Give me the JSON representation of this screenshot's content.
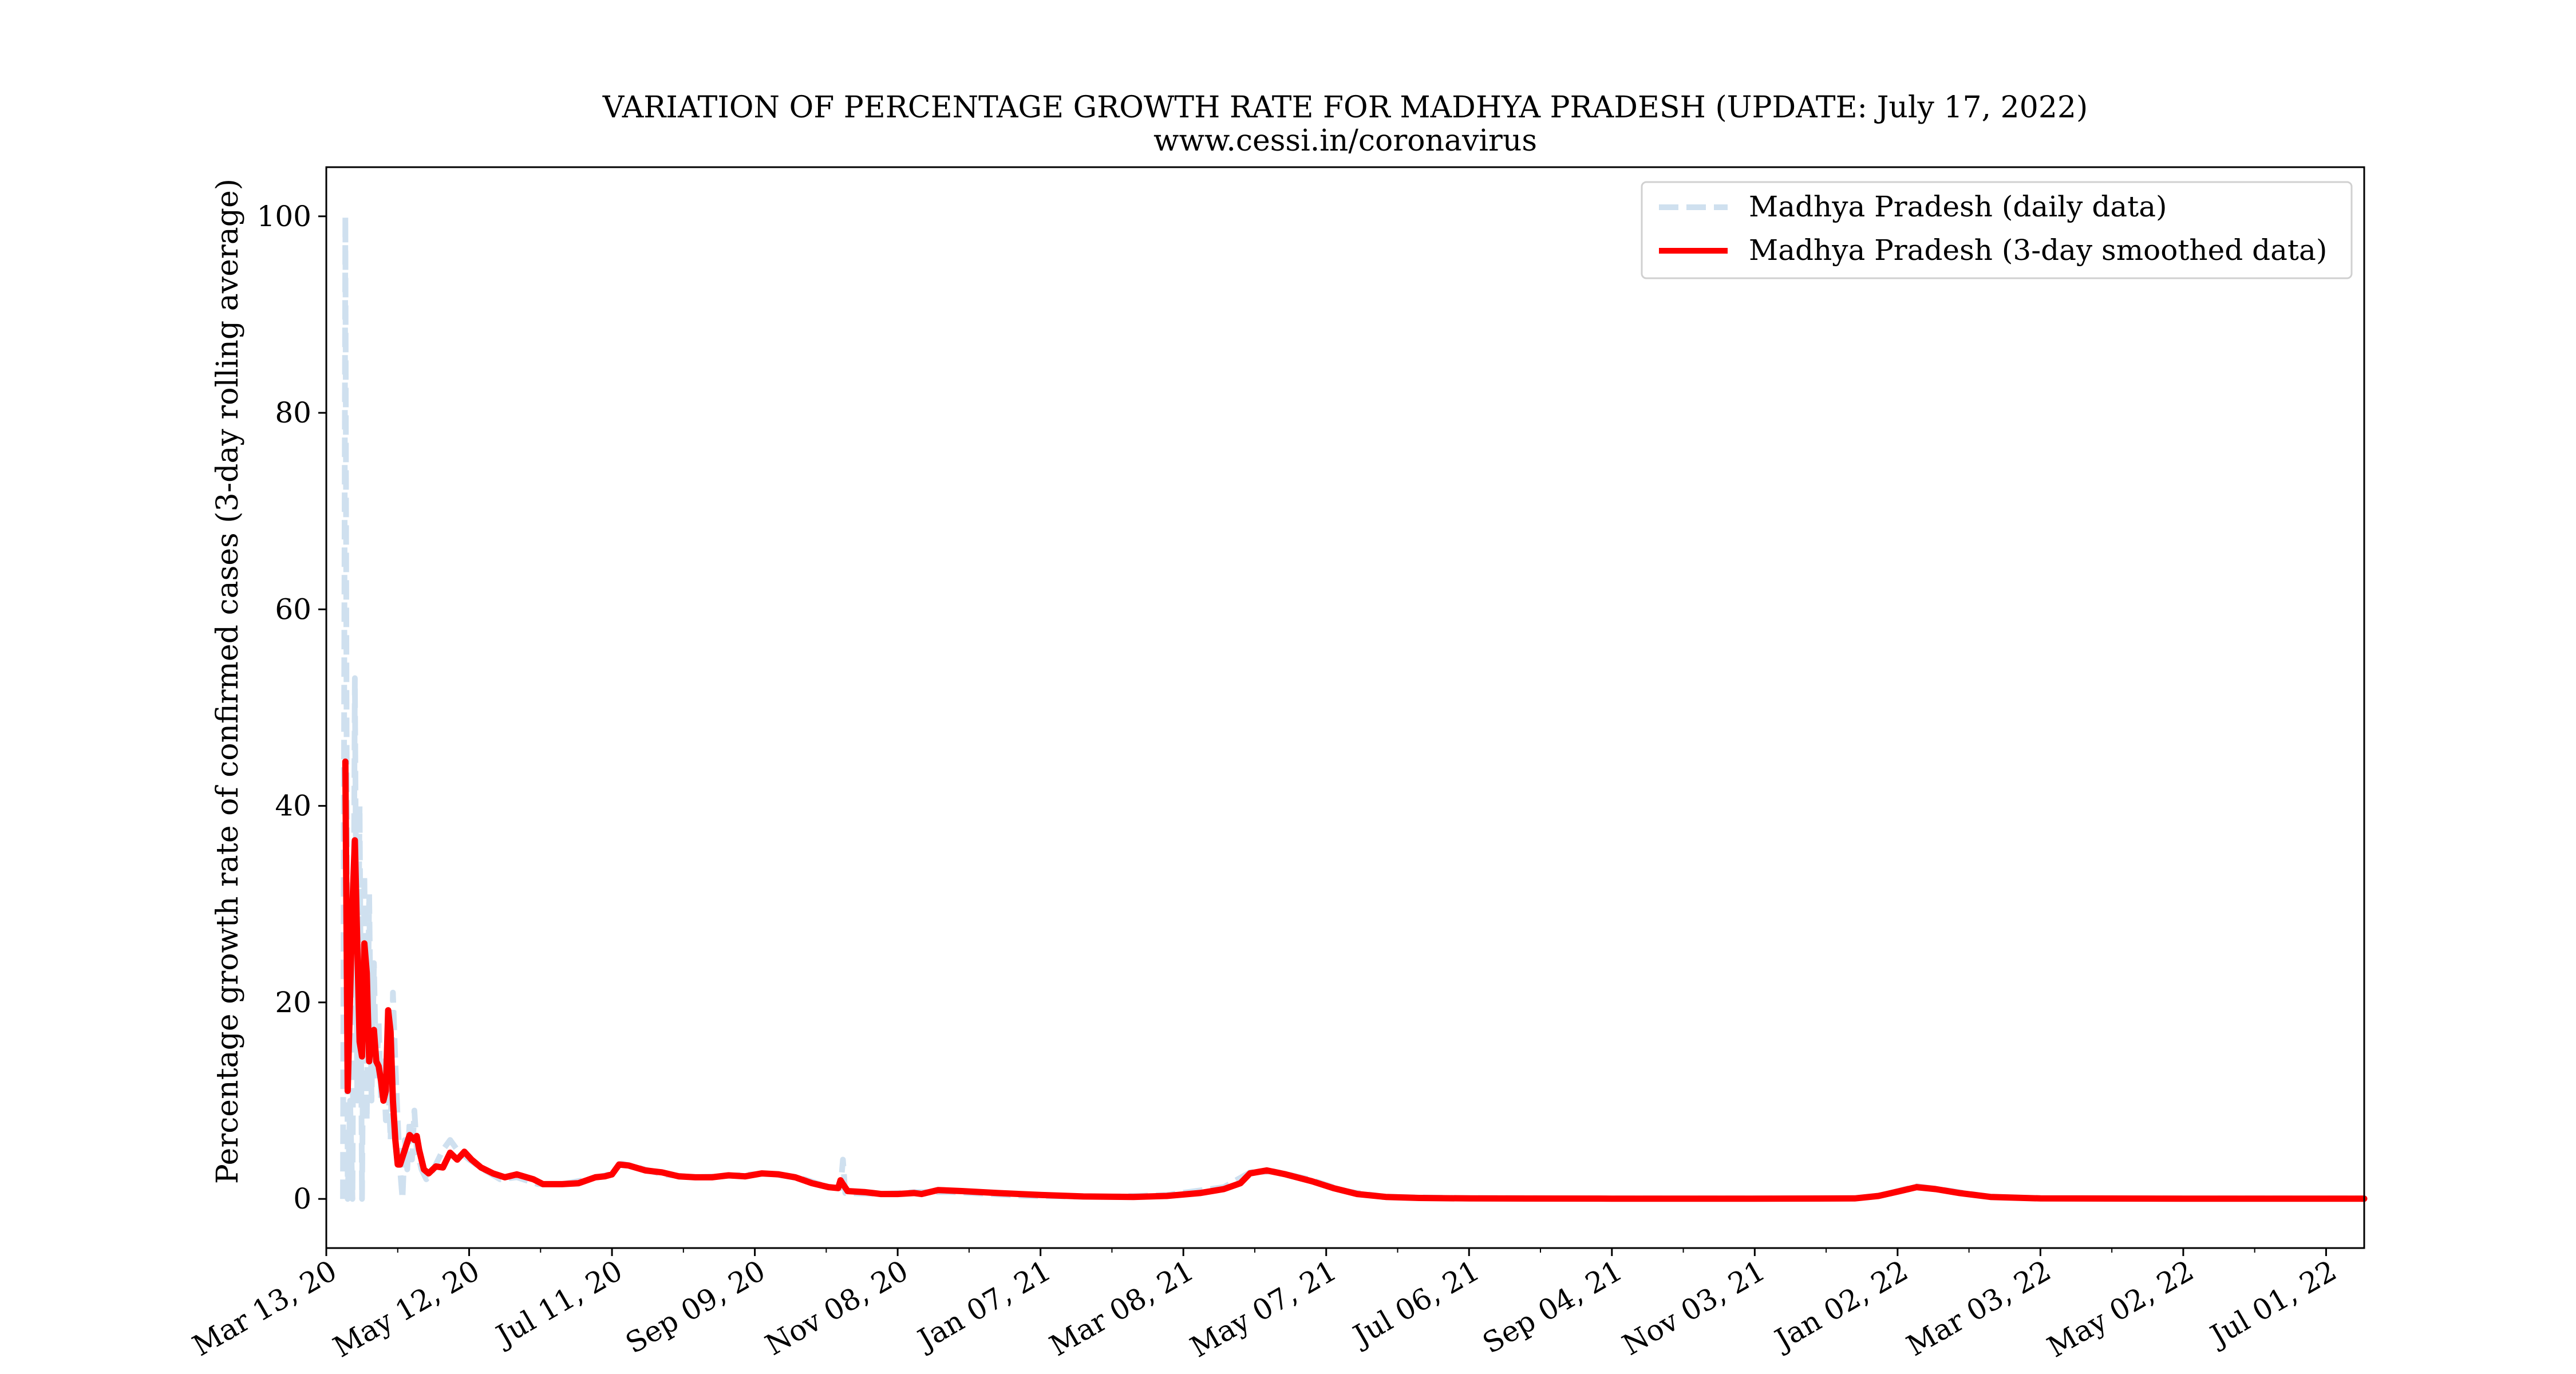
{
  "chart_data": {
    "type": "line",
    "title": "VARIATION OF PERCENTAGE GROWTH RATE FOR MADHYA PRADESH (UPDATE: July 17, 2022)",
    "subtitle": "www.cessi.in/coronavirus",
    "xlabel": "",
    "ylabel": "Percentage growth rate of confirmed cases (3-day rolling average)",
    "x_start_date": "2020-03-13",
    "x_end_date": "2022-07-17",
    "xlim": [
      "2020-03-13",
      "2022-07-17"
    ],
    "ylim": [
      -5,
      105
    ],
    "x_ticks": [
      "2020-03-13",
      "2020-05-12",
      "2020-07-11",
      "2020-09-09",
      "2020-11-08",
      "2021-01-07",
      "2021-03-08",
      "2021-05-07",
      "2021-07-06",
      "2021-09-04",
      "2021-11-03",
      "2022-01-02",
      "2022-03-03",
      "2022-05-02",
      "2022-07-01"
    ],
    "x_tick_labels": [
      "Mar 13, 20",
      "May 12, 20",
      "Jul 11, 20",
      "Sep 09, 20",
      "Nov 08, 20",
      "Jan 07, 21",
      "Mar 08, 21",
      "May 07, 21",
      "Jul 06, 21",
      "Sep 04, 21",
      "Nov 03, 21",
      "Jan 02, 22",
      "Mar 03, 22",
      "May 02, 22",
      "Jul 01, 22"
    ],
    "y_ticks": [
      0,
      20,
      40,
      60,
      80,
      100
    ],
    "y_tick_labels": [
      "0",
      "20",
      "40",
      "60",
      "80",
      "100"
    ],
    "grid": false,
    "legend_position": "top-right",
    "series": [
      {
        "name": "Madhya Pradesh (daily data)",
        "color": "#cfe0ef",
        "style": "dashed",
        "points": [
          [
            "2020-03-20",
            0
          ],
          [
            "2020-03-21",
            100
          ],
          [
            "2020-03-22",
            0
          ],
          [
            "2020-03-23",
            10
          ],
          [
            "2020-03-24",
            0
          ],
          [
            "2020-03-25",
            53
          ],
          [
            "2020-03-26",
            10
          ],
          [
            "2020-03-27",
            40
          ],
          [
            "2020-03-28",
            0
          ],
          [
            "2020-03-29",
            33
          ],
          [
            "2020-03-30",
            8
          ],
          [
            "2020-03-31",
            31
          ],
          [
            "2020-04-01",
            10
          ],
          [
            "2020-04-02",
            24
          ],
          [
            "2020-04-03",
            12
          ],
          [
            "2020-04-04",
            18
          ],
          [
            "2020-04-05",
            10
          ],
          [
            "2020-04-06",
            14
          ],
          [
            "2020-04-07",
            8
          ],
          [
            "2020-04-08",
            12
          ],
          [
            "2020-04-09",
            6
          ],
          [
            "2020-04-10",
            21
          ],
          [
            "2020-04-11",
            14
          ],
          [
            "2020-04-12",
            8
          ],
          [
            "2020-04-13",
            3
          ],
          [
            "2020-04-14",
            0
          ],
          [
            "2020-04-15",
            6
          ],
          [
            "2020-04-16",
            3
          ],
          [
            "2020-04-17",
            8
          ],
          [
            "2020-04-18",
            4
          ],
          [
            "2020-04-19",
            9
          ],
          [
            "2020-04-20",
            5
          ],
          [
            "2020-04-22",
            3
          ],
          [
            "2020-04-24",
            2
          ],
          [
            "2020-04-27",
            3
          ],
          [
            "2020-05-01",
            5
          ],
          [
            "2020-05-04",
            6
          ],
          [
            "2020-05-07",
            5
          ],
          [
            "2020-05-12",
            4
          ],
          [
            "2020-05-18",
            3
          ],
          [
            "2020-05-25",
            2
          ],
          [
            "2020-06-01",
            2.2
          ],
          [
            "2020-06-10",
            1.5
          ],
          [
            "2020-06-20",
            1.5
          ],
          [
            "2020-07-01",
            2
          ],
          [
            "2020-07-10",
            2.5
          ],
          [
            "2020-07-15",
            3.6
          ],
          [
            "2020-07-22",
            3.2
          ],
          [
            "2020-08-01",
            2.5
          ],
          [
            "2020-08-15",
            2.2
          ],
          [
            "2020-09-01",
            2.4
          ],
          [
            "2020-09-15",
            2.6
          ],
          [
            "2020-09-30",
            2
          ],
          [
            "2020-10-10",
            1.2
          ],
          [
            "2020-10-15",
            1.1
          ],
          [
            "2020-10-16",
            4
          ],
          [
            "2020-10-17",
            0.6
          ],
          [
            "2020-11-01",
            0.5
          ],
          [
            "2020-11-15",
            0.7
          ],
          [
            "2020-12-01",
            0.7
          ],
          [
            "2021-01-01",
            0.3
          ],
          [
            "2021-02-01",
            0.2
          ],
          [
            "2021-03-01",
            0.4
          ],
          [
            "2021-03-25",
            1.2
          ],
          [
            "2021-04-05",
            2.7
          ],
          [
            "2021-04-15",
            2.8
          ],
          [
            "2021-04-30",
            2
          ],
          [
            "2021-05-15",
            0.8
          ],
          [
            "2021-06-01",
            0.2
          ],
          [
            "2021-07-01",
            0.1
          ],
          [
            "2021-09-01",
            0.05
          ],
          [
            "2021-12-15",
            0.05
          ],
          [
            "2021-12-25",
            0.3
          ],
          [
            "2022-01-10",
            1.3
          ],
          [
            "2022-01-25",
            0.8
          ],
          [
            "2022-02-10",
            0.2
          ],
          [
            "2022-03-01",
            0.05
          ],
          [
            "2022-07-17",
            0.05
          ]
        ]
      },
      {
        "name": "Madhya Pradesh (3-day smoothed data)",
        "color": "#ff0000",
        "style": "solid",
        "points": [
          [
            "2020-03-21",
            44.5
          ],
          [
            "2020-03-22",
            11
          ],
          [
            "2020-03-24",
            30
          ],
          [
            "2020-03-25",
            36.5
          ],
          [
            "2020-03-26",
            26
          ],
          [
            "2020-03-27",
            16
          ],
          [
            "2020-03-28",
            14.5
          ],
          [
            "2020-03-29",
            26
          ],
          [
            "2020-03-30",
            23
          ],
          [
            "2020-03-31",
            14
          ],
          [
            "2020-04-01",
            17
          ],
          [
            "2020-04-02",
            17.2
          ],
          [
            "2020-04-03",
            14
          ],
          [
            "2020-04-04",
            13.5
          ],
          [
            "2020-04-05",
            12
          ],
          [
            "2020-04-06",
            10
          ],
          [
            "2020-04-07",
            11
          ],
          [
            "2020-04-08",
            19.2
          ],
          [
            "2020-04-09",
            17
          ],
          [
            "2020-04-10",
            10
          ],
          [
            "2020-04-11",
            6
          ],
          [
            "2020-04-12",
            3.5
          ],
          [
            "2020-04-13",
            3.5
          ],
          [
            "2020-04-15",
            5
          ],
          [
            "2020-04-17",
            6.5
          ],
          [
            "2020-04-19",
            6
          ],
          [
            "2020-04-20",
            6.4
          ],
          [
            "2020-04-21",
            5
          ],
          [
            "2020-04-23",
            3
          ],
          [
            "2020-04-25",
            2.6
          ],
          [
            "2020-04-28",
            3.3
          ],
          [
            "2020-05-01",
            3.2
          ],
          [
            "2020-05-04",
            4.7
          ],
          [
            "2020-05-07",
            4
          ],
          [
            "2020-05-10",
            4.8
          ],
          [
            "2020-05-13",
            4
          ],
          [
            "2020-05-17",
            3.2
          ],
          [
            "2020-05-22",
            2.6
          ],
          [
            "2020-05-27",
            2.2
          ],
          [
            "2020-06-01",
            2.5
          ],
          [
            "2020-06-08",
            2
          ],
          [
            "2020-06-12",
            1.5
          ],
          [
            "2020-06-20",
            1.5
          ],
          [
            "2020-06-27",
            1.6
          ],
          [
            "2020-07-04",
            2.2
          ],
          [
            "2020-07-08",
            2.3
          ],
          [
            "2020-07-11",
            2.5
          ],
          [
            "2020-07-14",
            3.5
          ],
          [
            "2020-07-18",
            3.4
          ],
          [
            "2020-07-25",
            2.9
          ],
          [
            "2020-08-01",
            2.7
          ],
          [
            "2020-08-08",
            2.3
          ],
          [
            "2020-08-15",
            2.2
          ],
          [
            "2020-08-22",
            2.2
          ],
          [
            "2020-08-29",
            2.4
          ],
          [
            "2020-09-05",
            2.3
          ],
          [
            "2020-09-12",
            2.6
          ],
          [
            "2020-09-19",
            2.5
          ],
          [
            "2020-09-26",
            2.2
          ],
          [
            "2020-10-03",
            1.6
          ],
          [
            "2020-10-10",
            1.2
          ],
          [
            "2020-10-14",
            1.1
          ],
          [
            "2020-10-15",
            1.9
          ],
          [
            "2020-10-16",
            1.5
          ],
          [
            "2020-10-18",
            0.8
          ],
          [
            "2020-10-25",
            0.7
          ],
          [
            "2020-11-01",
            0.5
          ],
          [
            "2020-11-08",
            0.5
          ],
          [
            "2020-11-15",
            0.6
          ],
          [
            "2020-11-18",
            0.5
          ],
          [
            "2020-11-25",
            0.9
          ],
          [
            "2020-12-05",
            0.8
          ],
          [
            "2020-12-20",
            0.6
          ],
          [
            "2021-01-07",
            0.4
          ],
          [
            "2021-01-25",
            0.25
          ],
          [
            "2021-02-15",
            0.2
          ],
          [
            "2021-03-01",
            0.3
          ],
          [
            "2021-03-15",
            0.6
          ],
          [
            "2021-03-25",
            1
          ],
          [
            "2021-04-01",
            1.6
          ],
          [
            "2021-04-05",
            2.6
          ],
          [
            "2021-04-12",
            2.9
          ],
          [
            "2021-04-20",
            2.5
          ],
          [
            "2021-05-01",
            1.8
          ],
          [
            "2021-05-10",
            1.1
          ],
          [
            "2021-05-20",
            0.5
          ],
          [
            "2021-06-01",
            0.2
          ],
          [
            "2021-06-15",
            0.1
          ],
          [
            "2021-07-06",
            0.05
          ],
          [
            "2021-09-04",
            0.03
          ],
          [
            "2021-11-03",
            0.03
          ],
          [
            "2021-12-15",
            0.05
          ],
          [
            "2021-12-25",
            0.3
          ],
          [
            "2022-01-03",
            0.8
          ],
          [
            "2022-01-10",
            1.2
          ],
          [
            "2022-01-18",
            1
          ],
          [
            "2022-01-28",
            0.6
          ],
          [
            "2022-02-10",
            0.2
          ],
          [
            "2022-03-03",
            0.05
          ],
          [
            "2022-05-02",
            0.03
          ],
          [
            "2022-07-17",
            0.03
          ]
        ]
      }
    ]
  }
}
